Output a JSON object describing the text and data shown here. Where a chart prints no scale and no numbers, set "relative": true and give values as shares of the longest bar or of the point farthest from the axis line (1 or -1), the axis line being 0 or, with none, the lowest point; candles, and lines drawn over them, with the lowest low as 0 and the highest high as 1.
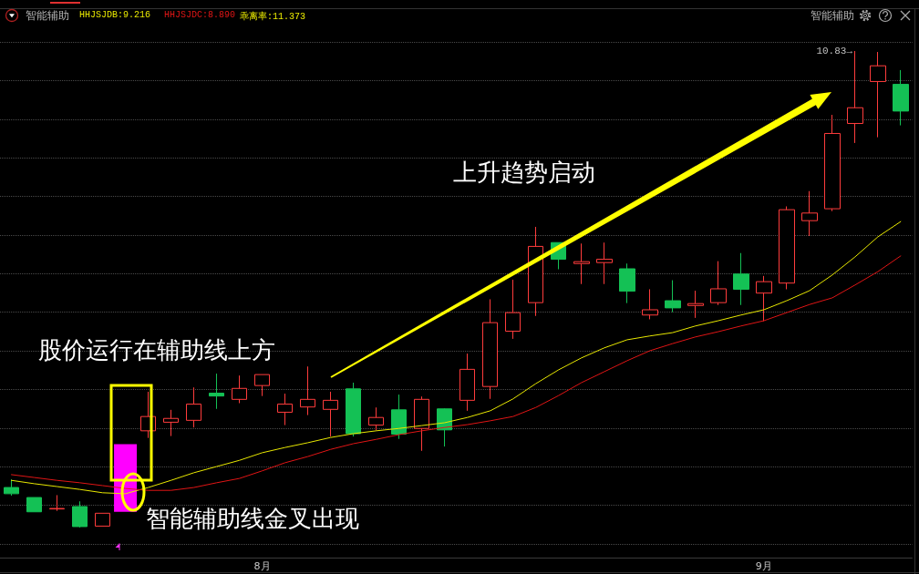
{
  "chart_data": {
    "type": "candlestick",
    "title": "智能辅助",
    "relative": true,
    "legend": "top left",
    "grid": "y",
    "marker": "none",
    "categories": [
      null,
      null,
      null,
      null,
      null,
      null,
      null,
      null,
      null,
      null,
      null,
      "8月",
      null,
      null,
      null,
      null,
      null,
      null,
      null,
      null,
      null,
      null,
      null,
      null,
      null,
      null,
      null,
      null,
      null,
      null,
      null,
      null,
      null,
      "9月",
      null,
      null,
      null,
      null,
      null,
      null
    ],
    "series": [
      {
        "ohlc": [
          [
            0.084,
            0.101,
            0.067,
            0.071
          ],
          [
            0.063,
            0.063,
            0.033,
            0.033
          ],
          [
            0.039,
            0.068,
            0.035,
            0.04
          ],
          [
            0.044,
            0.055,
            0,
            0.002
          ],
          [
            0.003,
            0.03,
            0.003,
            0.03
          ],
          null,
          [
            0.203,
            0.285,
            0.188,
            0.233
          ],
          [
            0.221,
            0.247,
            0.192,
            0.229
          ],
          [
            0.225,
            0.294,
            0.21,
            0.259
          ],
          [
            0.282,
            0.323,
            0.249,
            0.276
          ],
          [
            0.269,
            0.319,
            0.261,
            0.292
          ],
          [
            0.298,
            0.321,
            0.276,
            0.321
          ],
          [
            0.242,
            0.281,
            0.215,
            0.259
          ],
          [
            0.253,
            0.338,
            0.236,
            0.269
          ],
          [
            0.248,
            0.285,
            0.191,
            0.267
          ],
          [
            0.291,
            0.304,
            0.191,
            0.197
          ],
          [
            0.215,
            0.252,
            0.204,
            0.231
          ],
          [
            0.247,
            0.279,
            0.186,
            0.196
          ],
          [
            0.208,
            0.275,
            0.161,
            0.269
          ],
          [
            0.249,
            0.25,
            0.17,
            0.205
          ],
          [
            0.267,
            0.365,
            0.245,
            0.332
          ],
          [
            0.296,
            0.479,
            0.27,
            0.43
          ],
          [
            0.412,
            0.52,
            0.396,
            0.451
          ],
          [
            0.472,
            0.631,
            0.444,
            0.59
          ],
          [
            0.598,
            0.598,
            0.542,
            0.563
          ],
          [
            0.554,
            0.596,
            0.511,
            0.558
          ],
          [
            0.556,
            0.598,
            0.511,
            0.563
          ],
          [
            0.543,
            0.554,
            0.471,
            0.496
          ],
          [
            0.446,
            0.5,
            0.437,
            0.457
          ],
          [
            0.476,
            0.519,
            0.452,
            0.461
          ],
          [
            0.466,
            0.497,
            0.44,
            0.47
          ],
          [
            0.472,
            0.559,
            0.467,
            0.501
          ],
          [
            0.532,
            0.576,
            0.467,
            0.5
          ],
          [
            0.492,
            0.528,
            0.433,
            0.516
          ],
          [
            0.513,
            0.674,
            0.5,
            0.667
          ],
          [
            0.644,
            0.706,
            0.612,
            0.66
          ],
          [
            0.669,
            0.866,
            0.664,
            0.827
          ],
          [
            0.848,
            1,
            0.807,
            0.881
          ],
          [
            0.936,
            0.998,
            0.819,
            0.969
          ],
          [
            0.93,
            0.96,
            0.844,
            0.874
          ]
        ],
        "colors": [
          "#14c155",
          "#14c155",
          "#ff3c3c",
          "#14c155",
          "#ff3c3c",
          null,
          "#ff3c3c",
          "#ff3c3c",
          "#ff3c3c",
          "#14c155",
          "#ff3c3c",
          "#ff3c3c",
          "#ff3c3c",
          "#ff3c3c",
          "#ff3c3c",
          "#14c155",
          "#ff3c3c",
          "#14c155",
          "#ff3c3c",
          "#14c155",
          "#ff3c3c",
          "#ff3c3c",
          "#ff3c3c",
          "#ff3c3c",
          "#14c155",
          "#ff3c3c",
          "#ff3c3c",
          "#14c155",
          "#ff3c3c",
          "#14c155",
          "#ff3c3c",
          "#ff3c3c",
          "#14c155",
          "#ff3c3c",
          "#ff3c3c",
          "#ff3c3c",
          "#ff3c3c",
          "#ff3c3c",
          "#ff3c3c",
          "#14c155"
        ]
      },
      {
        "type": "bar",
        "color": "#ff00ff",
        "base": [
          null,
          null,
          null,
          null,
          null,
          0.033,
          null,
          null,
          null,
          null,
          null,
          null,
          null,
          null,
          null,
          null,
          null,
          null,
          null,
          null,
          null,
          null,
          null,
          null,
          null,
          null,
          null,
          null,
          null,
          null,
          null,
          null,
          null,
          null,
          null,
          null,
          null,
          null,
          null,
          null
        ],
        "values": [
          null,
          null,
          null,
          null,
          null,
          0.142,
          null,
          null,
          null,
          null,
          null,
          null,
          null,
          null,
          null,
          null,
          null,
          null,
          null,
          null,
          null,
          null,
          null,
          null,
          null,
          null,
          null,
          null,
          null,
          null,
          null,
          null,
          null,
          null,
          null,
          null,
          null,
          null,
          null,
          null
        ]
      },
      {
        "type": "line",
        "name": "HHJSJDB:9.216",
        "color": "#e8e800",
        "values": [
          0.099,
          0.092,
          0.086,
          0.08,
          0.073,
          0.071,
          0.084,
          0.099,
          0.115,
          0.128,
          0.141,
          0.157,
          0.168,
          0.178,
          0.189,
          0.197,
          0.203,
          0.208,
          0.214,
          0.22,
          0.231,
          0.245,
          0.27,
          0.302,
          0.331,
          0.356,
          0.377,
          0.394,
          0.402,
          0.409,
          0.423,
          0.434,
          0.446,
          0.457,
          0.476,
          0.497,
          0.53,
          0.568,
          0.61,
          0.642
        ]
      },
      {
        "type": "line",
        "name": "HHJSJDC:8.890",
        "color": "#e01515",
        "values": [
          0.111,
          0.105,
          0.099,
          0.094,
          0.088,
          0.082,
          0.078,
          0.078,
          0.084,
          0.094,
          0.103,
          0.119,
          0.136,
          0.149,
          0.164,
          0.176,
          0.185,
          0.195,
          0.203,
          0.21,
          0.216,
          0.224,
          0.233,
          0.252,
          0.277,
          0.304,
          0.327,
          0.35,
          0.371,
          0.386,
          0.4,
          0.411,
          0.423,
          0.434,
          0.451,
          0.468,
          0.482,
          0.509,
          0.537,
          0.57
        ]
      }
    ],
    "annotations": [
      "乖离率:11.373",
      "上升趋势启动",
      "股价运行在辅助线上方",
      "智能辅助线金叉出现",
      "10.83→"
    ]
  }
}
